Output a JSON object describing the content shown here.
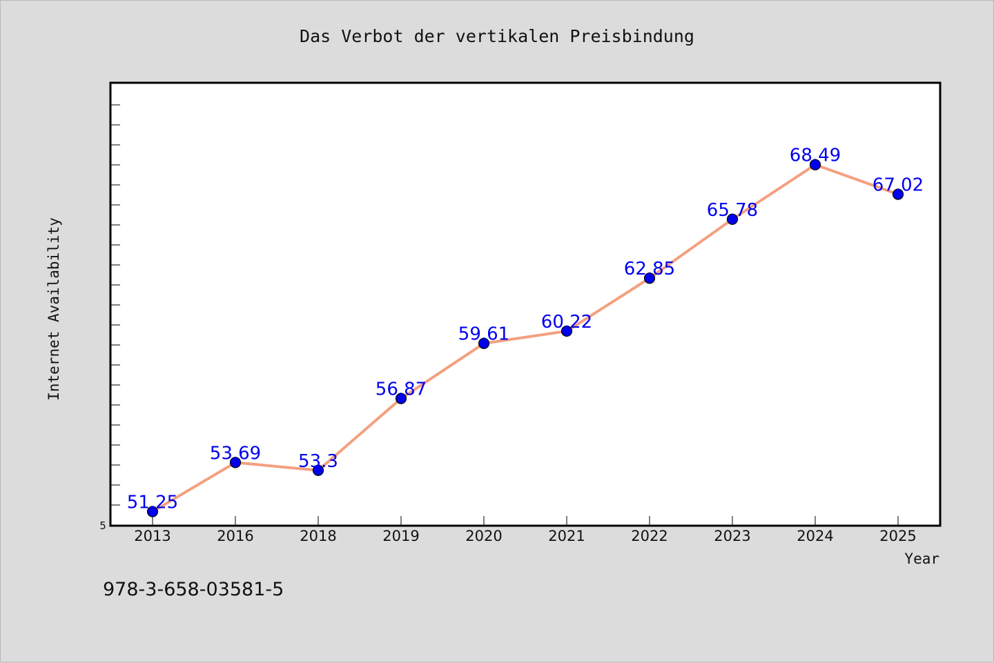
{
  "chart_data": {
    "type": "line",
    "title": "Das Verbot der vertikalen Preisbindung",
    "xlabel": "Year",
    "ylabel": "Internet Availability",
    "categories": [
      "2013",
      "2016",
      "2018",
      "2019",
      "2020",
      "2021",
      "2022",
      "2023",
      "2024",
      "2025"
    ],
    "series": [
      {
        "values": [
          51.25,
          53.69,
          53.3,
          56.87,
          59.61,
          60.22,
          62.85,
          65.78,
          68.49,
          67.02
        ],
        "data_labels": [
          "51.25",
          "53.69",
          "53.3",
          "56.87",
          "59.61",
          "60.22",
          "62.85",
          "65.78",
          "68.49",
          "67.02"
        ]
      }
    ],
    "ylim": [
      50.55,
      72.56
    ],
    "y_min_tick_label": "5",
    "grid": false,
    "legend": "none",
    "colors": {
      "line": "#f4a07f",
      "marker": "#0000ee",
      "data_label": "#0000ee",
      "plot_background": "#ffffff",
      "figure_background": "#dcdcdc"
    }
  },
  "footer": {
    "isbn": "978-3-658-03581-5"
  }
}
